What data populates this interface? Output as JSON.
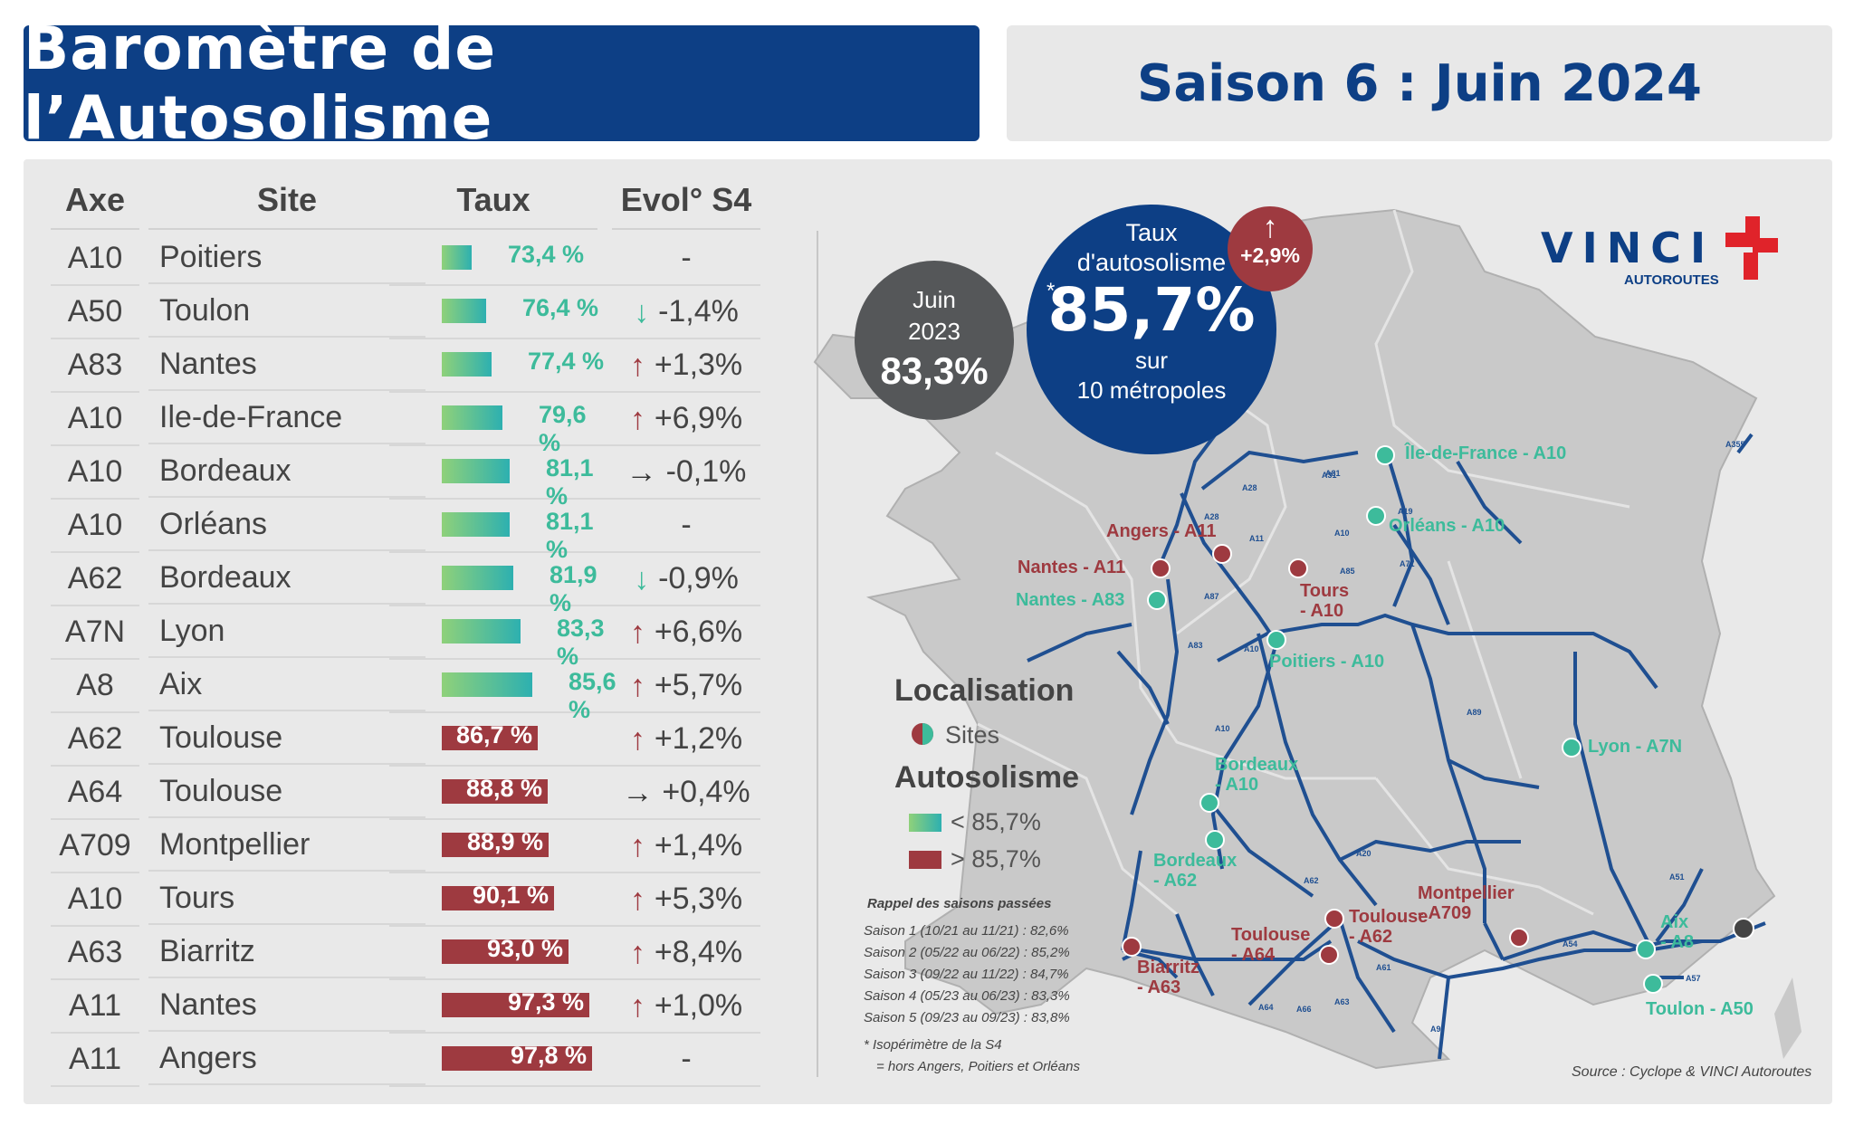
{
  "header": {
    "title": "Baromètre de l’Autosolisme",
    "season": "Saison 6 : Juin 2024"
  },
  "table": {
    "headers": [
      "Axe",
      "Site",
      "Taux",
      "Evol° S4"
    ],
    "rows": [
      {
        "axe": "A10",
        "site": "Poitiers",
        "taux": "73,4 %",
        "evol": "-",
        "dir": "none"
      },
      {
        "axe": "A50",
        "site": "Toulon",
        "taux": "76,4 %",
        "evol": "-1,4%",
        "dir": "down"
      },
      {
        "axe": "A83",
        "site": "Nantes",
        "taux": "77,4 %",
        "evol": "+1,3%",
        "dir": "up"
      },
      {
        "axe": "A10",
        "site": "Ile-de-France",
        "taux": "79,6 %",
        "evol": "+6,9%",
        "dir": "up"
      },
      {
        "axe": "A10",
        "site": "Bordeaux",
        "taux": "81,1 %",
        "evol": "-0,1%",
        "dir": "flat"
      },
      {
        "axe": "A10",
        "site": "Orléans",
        "taux": "81,1 %",
        "evol": "-",
        "dir": "none"
      },
      {
        "axe": "A62",
        "site": "Bordeaux",
        "taux": "81,9 %",
        "evol": "-0,9%",
        "dir": "down"
      },
      {
        "axe": "A7N",
        "site": "Lyon",
        "taux": "83,3 %",
        "evol": "+6,6%",
        "dir": "up"
      },
      {
        "axe": "A8",
        "site": "Aix",
        "taux": "85,6 %",
        "evol": "+5,7%",
        "dir": "up"
      },
      {
        "axe": "A62",
        "site": "Toulouse",
        "taux": "86,7 %",
        "evol": "+1,2%",
        "dir": "up"
      },
      {
        "axe": "A64",
        "site": "Toulouse",
        "taux": "88,8 %",
        "evol": "+0,4%",
        "dir": "flat"
      },
      {
        "axe": "A709",
        "site": "Montpellier",
        "taux": "88,9 %",
        "evol": "+1,4%",
        "dir": "up"
      },
      {
        "axe": "A10",
        "site": "Tours",
        "taux": "90,1 %",
        "evol": "+5,3%",
        "dir": "up"
      },
      {
        "axe": "A63",
        "site": "Biarritz",
        "taux": "93,0 %",
        "evol": "+8,4%",
        "dir": "up"
      },
      {
        "axe": "A11",
        "site": "Nantes",
        "taux": "97,3 %",
        "evol": "+1,0%",
        "dir": "up"
      },
      {
        "axe": "A11",
        "site": "Angers",
        "taux": "97,8 %",
        "evol": "-",
        "dir": "none"
      }
    ]
  },
  "chart_data": {
    "type": "bar",
    "categories": [
      "A10 Poitiers",
      "A50 Toulon",
      "A83 Nantes",
      "A10 Ile-de-France",
      "A10 Bordeaux",
      "A10 Orléans",
      "A62 Bordeaux",
      "A7N Lyon",
      "A8 Aix",
      "A62 Toulouse",
      "A64 Toulouse",
      "A709 Montpellier",
      "A10 Tours",
      "A63 Biarritz",
      "A11 Nantes",
      "A11 Angers"
    ],
    "values": [
      73.4,
      76.4,
      77.4,
      79.6,
      81.1,
      81.1,
      81.9,
      83.3,
      85.6,
      86.7,
      88.8,
      88.9,
      90.1,
      93.0,
      97.3,
      97.8
    ],
    "threshold": 85.7,
    "colors": {
      "below": "#2db0b0",
      "above": "#9e3a40"
    },
    "title": "",
    "xlabel": "",
    "ylabel": "Taux"
  },
  "kpi": {
    "prev_label_1": "Juin",
    "prev_label_2": "2023",
    "prev_value": "83,3%",
    "main_label_1": "Taux",
    "main_label_2": "d'autosolisme",
    "main_star": "*",
    "main_value": "85,7%",
    "main_sub_1": "sur",
    "main_sub_2": "10 métropoles",
    "delta": "+2,9%"
  },
  "logo": {
    "text": "VINCI",
    "sub": "AUTOROUTES"
  },
  "map": {
    "sites": [
      {
        "label": "Île-de-France - A10",
        "kind": "teal"
      },
      {
        "label": "Orléans - A10",
        "kind": "teal"
      },
      {
        "label": "Angers - A11",
        "kind": "red"
      },
      {
        "label": "Nantes - A11",
        "kind": "red"
      },
      {
        "label": "Nantes - A83",
        "kind": "teal"
      },
      {
        "label": "Tours",
        "label2": "- A10",
        "kind": "red"
      },
      {
        "label": "Poitiers - A10",
        "kind": "teal"
      },
      {
        "label": "Lyon - A7N",
        "kind": "teal"
      },
      {
        "label": "Bordeaux",
        "label2": "- A10",
        "kind": "teal"
      },
      {
        "label": "Bordeaux",
        "label2": "- A62",
        "kind": "teal"
      },
      {
        "label": "Toulouse",
        "label2": "- A62",
        "kind": "red"
      },
      {
        "label": "Toulouse",
        "label2": "- A64",
        "kind": "red"
      },
      {
        "label": "Montpellier",
        "label2": "- A709",
        "kind": "red"
      },
      {
        "label": "Biarritz",
        "label2": "- A63",
        "kind": "red"
      },
      {
        "label": "Aix",
        "label2": "- A8",
        "kind": "teal"
      },
      {
        "label": "Toulon - A50",
        "kind": "teal"
      }
    ],
    "roads": [
      "A28",
      "A81",
      "A11",
      "A28",
      "A10",
      "A19",
      "A71",
      "A85",
      "A87",
      "A83",
      "A10",
      "A10",
      "A89",
      "A20",
      "A62",
      "A61",
      "A64",
      "A63",
      "A66",
      "A9",
      "A54",
      "A51",
      "A57",
      "A355",
      "A31"
    ]
  },
  "legend": {
    "loc_title": "Localisation",
    "sites_label": "Sites",
    "auto_title": "Autosolisme",
    "below": "< 85,7%",
    "above": "> 85,7%"
  },
  "seasons": {
    "title": "Rappel des saisons passées",
    "items": [
      "Saison 1 (10/21 au 11/21) : 82,6%",
      "Saison 2 (05/22 au 06/22) : 85,2%",
      "Saison 3 (09/22 au 11/22) : 84,7%",
      "Saison 4 (05/23 au 06/23) : 83,3%",
      "Saison 5 (09/23 au 09/23) : 83,8%"
    ],
    "note_1": "Isopérimètre de la S4",
    "note_2": "= hors Angers, Poitiers et Orléans"
  },
  "source": "Source : Cyclope & VINCI Autoroutes"
}
